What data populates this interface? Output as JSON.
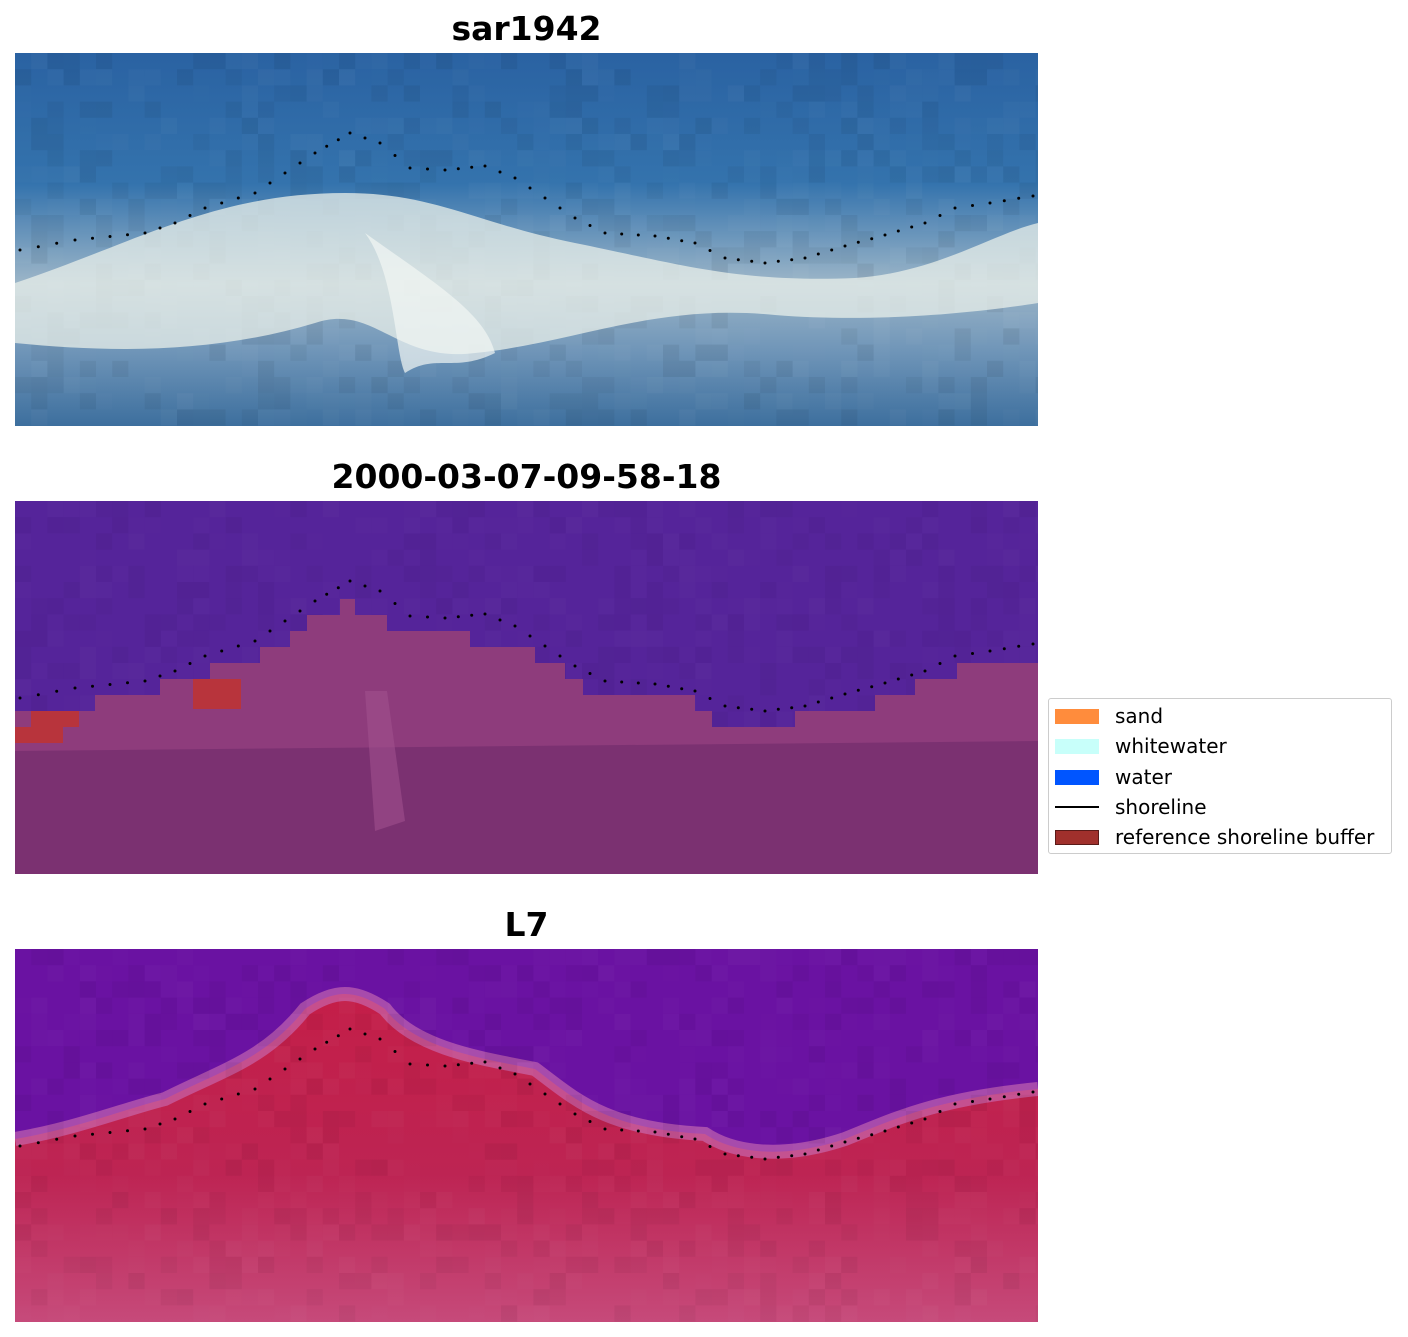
{
  "panels": [
    {
      "title": "sar1942",
      "scene": "rgb"
    },
    {
      "title": "2000-03-07-09-58-18",
      "scene": "classified"
    },
    {
      "title": "L7",
      "scene": "index"
    }
  ],
  "legend": {
    "items": [
      {
        "label": "sand",
        "color": "#ff8c3c",
        "kind": "patch"
      },
      {
        "label": "whitewater",
        "color": "#c8fffa",
        "kind": "patch"
      },
      {
        "label": "water",
        "color": "#0055ff",
        "kind": "patch"
      },
      {
        "label": "shoreline",
        "color": "#000000",
        "kind": "line"
      },
      {
        "label": "reference shoreline buffer",
        "color": "#a0302c",
        "kind": "patch"
      }
    ]
  },
  "colors": {
    "rgb_water": "#2f68a3",
    "rgb_surf": "#e8efe9",
    "classified_water": "#55249a",
    "classified_land": "#8e3c7c",
    "index_water": "#6a12a2",
    "index_land": "#c01e4a",
    "buffer": "#b8343c",
    "shoreline": "#000000"
  }
}
